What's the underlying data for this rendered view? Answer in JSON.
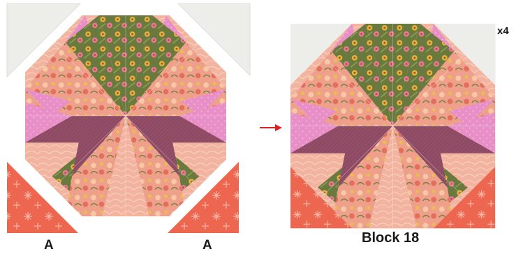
{
  "labels": {
    "corner_left": "A",
    "corner_right": "A",
    "block_name": "Block 18",
    "multiplier": "x4"
  },
  "colors": {
    "cream": "#ededea",
    "coral": "#ec6650",
    "pink": "#e88fc8",
    "plum": "#8d4a62",
    "peach": "#f2b39f",
    "peach_light": "#f5c7b6",
    "olive_green": "#6a7a3f",
    "floral_orange": "#eea08a",
    "arrow_red": "#e02020"
  },
  "icons": {
    "arrow": "right-arrow-icon"
  }
}
